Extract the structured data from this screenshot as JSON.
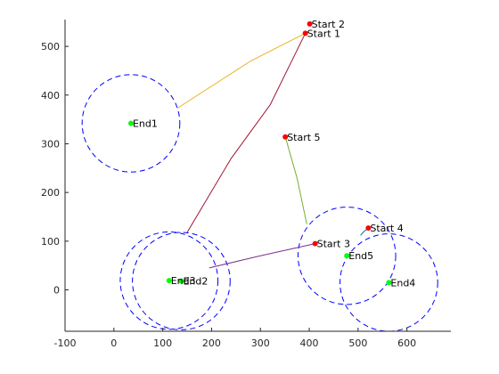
{
  "chart_data": {
    "type": "scatter",
    "title": "",
    "xlabel": "",
    "ylabel": "",
    "xlim": [
      -100,
      690
    ],
    "ylim": [
      -85,
      555
    ],
    "x_ticks": [
      -100,
      0,
      100,
      200,
      300,
      400,
      500,
      600
    ],
    "y_ticks": [
      0,
      100,
      200,
      300,
      400,
      500
    ],
    "grid": false,
    "legend": "none",
    "colors": {
      "start": "#ff0000",
      "end": "#00ff00",
      "circle": "#0000ff",
      "axis": "#262626"
    },
    "starts": [
      {
        "label": "Start 1",
        "x": 392,
        "y": 527
      },
      {
        "label": "Start 2",
        "x": 401,
        "y": 546
      },
      {
        "label": "Start 3",
        "x": 412,
        "y": 95
      },
      {
        "label": "Start 4",
        "x": 521,
        "y": 127
      },
      {
        "label": "Start 5",
        "x": 351,
        "y": 314
      }
    ],
    "ends": [
      {
        "label": "End1",
        "x": 35,
        "y": 342
      },
      {
        "label": "End2",
        "x": 138,
        "y": 18
      },
      {
        "label": "End3",
        "x": 113,
        "y": 19
      },
      {
        "label": "End4",
        "x": 563,
        "y": 15
      },
      {
        "label": "End5",
        "x": 477,
        "y": 70
      }
    ],
    "circles": [
      {
        "cx": 35,
        "cy": 342,
        "r": 100
      },
      {
        "cx": 138,
        "cy": 18,
        "r": 100
      },
      {
        "cx": 113,
        "cy": 19,
        "r": 100
      },
      {
        "cx": 563,
        "cy": 15,
        "r": 100
      },
      {
        "cx": 477,
        "cy": 70,
        "r": 100
      }
    ],
    "paths": [
      {
        "color": "#edb120",
        "points": [
          [
            392,
            527
          ],
          [
            280,
            470
          ],
          [
            130,
            373
          ]
        ]
      },
      {
        "color": "#a2142f",
        "points": [
          [
            392,
            527
          ],
          [
            320,
            380
          ],
          [
            240,
            270
          ],
          [
            150,
            118
          ]
        ]
      },
      {
        "color": "#7e2f8e",
        "points": [
          [
            412,
            95
          ],
          [
            300,
            70
          ],
          [
            195,
            45
          ]
        ]
      },
      {
        "color": "#77ac30",
        "points": [
          [
            351,
            314
          ],
          [
            375,
            230
          ],
          [
            395,
            135
          ]
        ]
      },
      {
        "color": "#0072bd",
        "points": [
          [
            521,
            127
          ],
          [
            510,
            118
          ],
          [
            505,
            112
          ]
        ]
      }
    ]
  }
}
